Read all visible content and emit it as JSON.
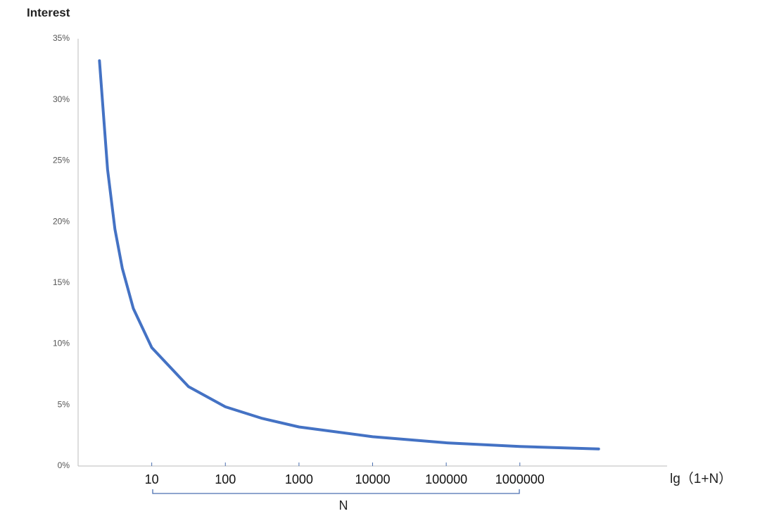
{
  "chart_data": {
    "type": "line",
    "y_label": "Interest",
    "x_label": "lg（1+N）",
    "bracket_label": "N",
    "x": [
      0.29,
      0.4,
      0.5,
      0.6,
      0.75,
      1,
      1.5,
      2,
      2.5,
      3,
      4,
      5,
      6,
      7.07
    ],
    "series": [
      {
        "color": "#4472c4",
        "values": [
          33.2,
          24.3,
          19.4,
          16.2,
          12.9,
          9.7,
          6.5,
          4.85,
          3.9,
          3.2,
          2.4,
          1.9,
          1.6,
          1.4
        ]
      }
    ],
    "xlim": [
      0,
      8
    ],
    "xticks": [
      {
        "value": 1,
        "label": "10"
      },
      {
        "value": 2,
        "label": "100"
      },
      {
        "value": 3,
        "label": "1000"
      },
      {
        "value": 4,
        "label": "10000"
      },
      {
        "value": 5,
        "label": "100000"
      },
      {
        "value": 6,
        "label": "1000000"
      }
    ],
    "ylim": [
      0,
      35
    ],
    "yticks": [
      {
        "value": 0,
        "label": "0%"
      },
      {
        "value": 5,
        "label": "5%"
      },
      {
        "value": 10,
        "label": "10%"
      },
      {
        "value": 15,
        "label": "15%"
      },
      {
        "value": 20,
        "label": "20%"
      },
      {
        "value": 25,
        "label": "25%"
      },
      {
        "value": 30,
        "label": "30%"
      },
      {
        "value": 35,
        "label": "35%"
      }
    ],
    "grid": false
  }
}
